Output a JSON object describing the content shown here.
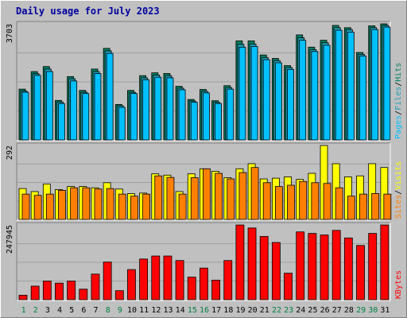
{
  "title": "Daily usage for July 2023",
  "colors": {
    "pages": "#00c0ff",
    "files": "#1ea0b8",
    "hits": "#008060",
    "visits": "#ffff00",
    "sites": "#ff8000",
    "kbytes": "#ff0000",
    "weekday_label": "#000000",
    "weekend_label": "#008040",
    "panel": "#c0c0c0"
  },
  "chart_data": [
    {
      "type": "bar",
      "panel": "top",
      "title": "Daily usage for July 2023",
      "categories": [
        "1",
        "2",
        "3",
        "4",
        "5",
        "6",
        "7",
        "8",
        "9",
        "10",
        "11",
        "12",
        "13",
        "14",
        "15",
        "16",
        "17",
        "18",
        "19",
        "20",
        "21",
        "22",
        "23",
        "24",
        "25",
        "26",
        "27",
        "28",
        "29",
        "30",
        "31"
      ],
      "ymax_label": "3703",
      "ylim": [
        0,
        3703
      ],
      "legend": [
        "Pages",
        "/",
        "Files",
        "/",
        "Hits"
      ],
      "series": [
        {
          "name": "Hits",
          "values": [
            1620,
            2180,
            2340,
            1260,
            2020,
            1580,
            2260,
            2920,
            1130,
            1580,
            2050,
            2140,
            2120,
            1710,
            1290,
            1610,
            1250,
            1730,
            3160,
            3160,
            2710,
            2600,
            2370,
            3350,
            2960,
            3180,
            3653,
            3580,
            2790,
            3640,
            3703
          ]
        },
        {
          "name": "Files",
          "values": [
            1560,
            2110,
            2260,
            1210,
            1950,
            1520,
            2180,
            2840,
            1090,
            1520,
            1980,
            2070,
            2050,
            1650,
            1240,
            1550,
            1200,
            1670,
            3050,
            3060,
            2630,
            2530,
            2310,
            3260,
            2880,
            3100,
            3580,
            3520,
            2730,
            3580,
            3650
          ]
        },
        {
          "name": "Pages",
          "values": [
            1520,
            2060,
            2180,
            1160,
            1880,
            1480,
            2120,
            2760,
            1040,
            1480,
            1920,
            2000,
            1980,
            1600,
            1200,
            1500,
            1160,
            1620,
            2960,
            2980,
            2560,
            2460,
            2250,
            3180,
            2820,
            3020,
            3500,
            3440,
            2680,
            3520,
            3600
          ]
        }
      ]
    },
    {
      "type": "bar",
      "panel": "middle",
      "ymax_label": "292",
      "ylim": [
        0,
        292
      ],
      "legend": [
        "Sites",
        "/",
        "Visits"
      ],
      "series": [
        {
          "name": "Visits",
          "values": [
            122,
            110,
            140,
            118,
            130,
            130,
            125,
            145,
            120,
            102,
            104,
            180,
            175,
            110,
            180,
            200,
            190,
            165,
            200,
            220,
            160,
            163,
            168,
            158,
            182,
            292,
            220,
            168,
            172,
            220,
            205
          ]
        },
        {
          "name": "Sites",
          "values": [
            100,
            95,
            100,
            115,
            125,
            125,
            120,
            122,
            100,
            92,
            100,
            172,
            166,
            100,
            165,
            200,
            182,
            160,
            185,
            205,
            145,
            130,
            135,
            150,
            145,
            142,
            125,
            92,
            100,
            102,
            100
          ]
        }
      ]
    },
    {
      "type": "bar",
      "panel": "bottom",
      "ymax_label": "247945",
      "ylim": [
        0,
        247945
      ],
      "legend": [
        "KBytes"
      ],
      "series": [
        {
          "name": "KBytes",
          "values": [
            15000,
            45000,
            62000,
            55000,
            62000,
            35000,
            85000,
            125000,
            30000,
            100000,
            135000,
            145000,
            145000,
            130000,
            75000,
            105000,
            65000,
            130000,
            247945,
            238000,
            210000,
            190000,
            88000,
            225000,
            220000,
            215000,
            230000,
            205000,
            180000,
            220000,
            247945
          ]
        }
      ]
    }
  ]
}
